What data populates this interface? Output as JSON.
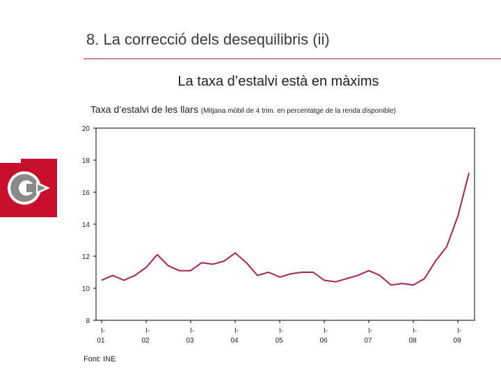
{
  "slide": {
    "title": "8. La correcció dels desequilibris (ii)",
    "subtitle": "La taxa d’estalvi està en màxims",
    "source": "Font: INE"
  },
  "colors": {
    "accent": "#9c2342",
    "logo_red": "#c8102e",
    "line": "#a3264a"
  },
  "logo": {
    "icon": "c-logo-icon"
  },
  "chart_data": {
    "type": "line",
    "title": "Taxa d’estalvi de les llars",
    "title_note": "(Mitjana mòbil de 4 trim. en percentatge de la renda disponible)",
    "xlabel": "",
    "ylabel": "",
    "ylim": [
      8,
      20
    ],
    "y_ticks": [
      8,
      10,
      12,
      14,
      16,
      18,
      20
    ],
    "x_tick_labels": [
      {
        "prefix": "I-",
        "year": "01"
      },
      {
        "prefix": "I-",
        "year": "02"
      },
      {
        "prefix": "I-",
        "year": "03"
      },
      {
        "prefix": "I-",
        "year": "04"
      },
      {
        "prefix": "I-",
        "year": "05"
      },
      {
        "prefix": "I-",
        "year": "06"
      },
      {
        "prefix": "I-",
        "year": "07"
      },
      {
        "prefix": "I-",
        "year": "08"
      },
      {
        "prefix": "I-",
        "year": "09"
      }
    ],
    "grid": false,
    "series": [
      {
        "values": [
          10.5,
          10.8,
          10.5,
          10.8,
          11.3,
          12.1,
          11.4,
          11.1,
          11.1,
          11.6,
          11.5,
          11.7,
          12.2,
          11.6,
          10.8,
          11.0,
          10.7,
          10.9,
          11.0,
          11.0,
          10.5,
          10.4,
          10.6,
          10.8,
          11.1,
          10.8,
          10.2,
          10.3,
          10.2,
          10.6,
          11.7,
          12.6,
          14.5,
          17.2
        ]
      }
    ]
  }
}
